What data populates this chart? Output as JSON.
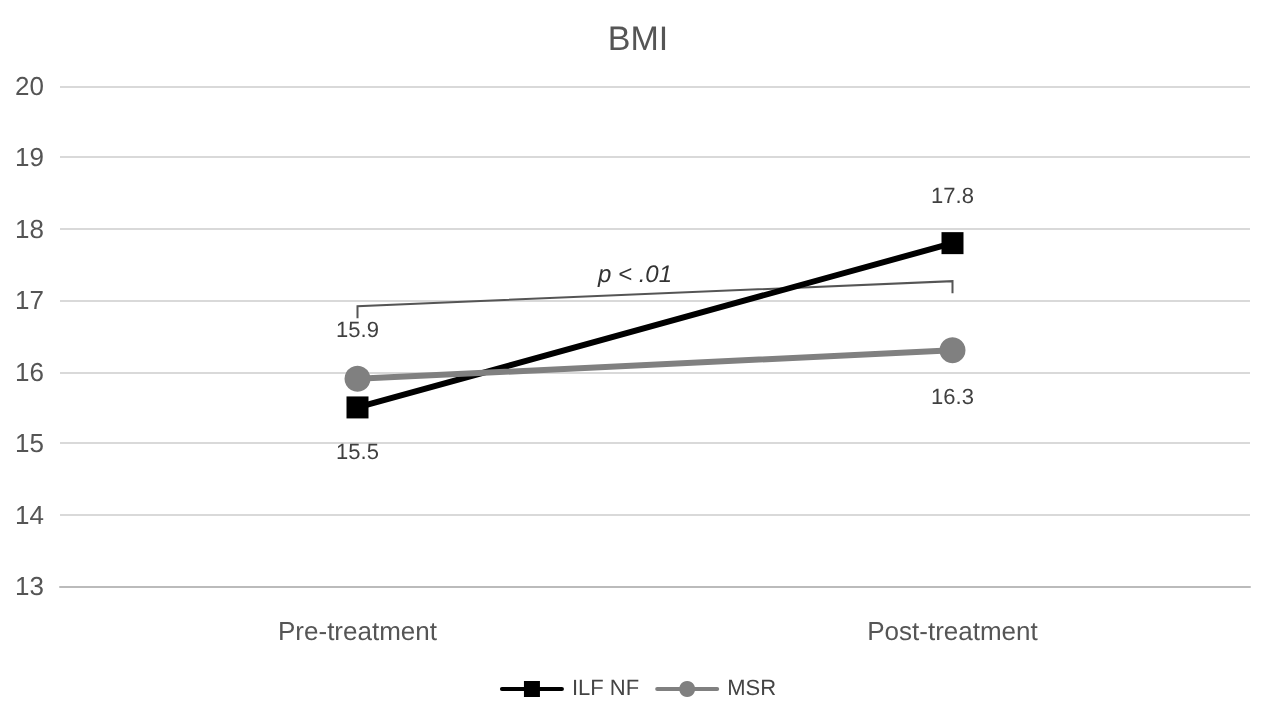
{
  "chart_data": {
    "type": "line",
    "title": "BMI",
    "categories": [
      "Pre-treatment",
      "Post-treatment"
    ],
    "series": [
      {
        "name": "ILF NF",
        "color": "#000000",
        "values": [
          15.5,
          17.8
        ],
        "marker": "square"
      },
      {
        "name": "MSR",
        "color": "#808080",
        "values": [
          15.9,
          16.3
        ],
        "marker": "circle"
      }
    ],
    "ylim": [
      13,
      20
    ],
    "yticks": [
      13,
      14,
      15,
      16,
      17,
      18,
      19,
      20
    ],
    "grid": "y",
    "legend": "bottom",
    "data_labels": true,
    "annotations": [
      "p < .01"
    ]
  }
}
